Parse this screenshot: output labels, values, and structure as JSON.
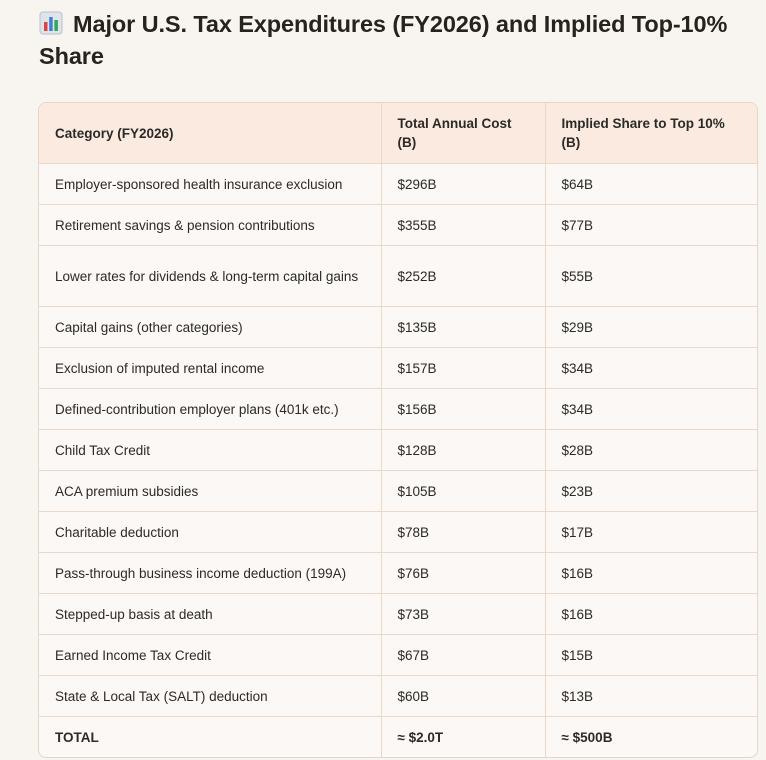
{
  "page": {
    "title": "Major U.S. Tax Expenditures (FY2026) and Implied Top-10% Share",
    "title_icon": "bar-chart-icon"
  },
  "table": {
    "headers": [
      "Category (FY2026)",
      "Total Annual Cost (B)",
      "Implied Share to Top 10% (B)"
    ],
    "rows": [
      {
        "category": "Employer-sponsored health insurance exclusion",
        "cost": "$296B",
        "share": "$64B"
      },
      {
        "category": "Retirement savings & pension contributions",
        "cost": "$355B",
        "share": "$77B"
      },
      {
        "category": "Lower rates for dividends & long-term capital gains",
        "cost": "$252B",
        "share": "$55B"
      },
      {
        "category": "Capital gains (other categories)",
        "cost": "$135B",
        "share": "$29B"
      },
      {
        "category": "Exclusion of imputed rental income",
        "cost": "$157B",
        "share": "$34B"
      },
      {
        "category": "Defined-contribution employer plans (401k etc.)",
        "cost": "$156B",
        "share": "$34B"
      },
      {
        "category": "Child Tax Credit",
        "cost": "$128B",
        "share": "$28B"
      },
      {
        "category": "ACA premium subsidies",
        "cost": "$105B",
        "share": "$23B"
      },
      {
        "category": "Charitable deduction",
        "cost": "$78B",
        "share": "$17B"
      },
      {
        "category": "Pass-through business income deduction (199A)",
        "cost": "$76B",
        "share": "$16B"
      },
      {
        "category": "Stepped-up basis at death",
        "cost": "$73B",
        "share": "$16B"
      },
      {
        "category": "Earned Income Tax Credit",
        "cost": "$67B",
        "share": "$15B"
      },
      {
        "category": "State & Local Tax (SALT) deduction",
        "cost": "$60B",
        "share": "$13B"
      }
    ],
    "total": {
      "category": "TOTAL",
      "cost": "≈ $2.0T",
      "share": "≈ $500B"
    }
  },
  "colors": {
    "header_bg": "#fbeae0",
    "border": "#ead9cb",
    "page_bg": "#f8f5f1"
  }
}
